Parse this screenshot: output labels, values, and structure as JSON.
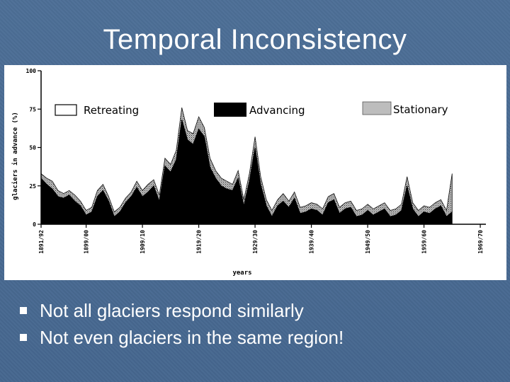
{
  "slide": {
    "title": "Temporal Inconsistency",
    "bullets": [
      "Not all glaciers respond similarly",
      "Not even glaciers in the same region!"
    ]
  },
  "colors": {
    "background": "#4a6c94",
    "advancing": "#000000",
    "stationary": "#bdbdbd",
    "retreating": "#ffffff"
  },
  "chart_data": {
    "type": "area",
    "title": "",
    "xlabel": "years",
    "ylabel": "glaciers in advance (%)",
    "ylim": [
      0,
      100
    ],
    "xlim": [
      1891.5,
      1970.5
    ],
    "yticks": [
      0,
      25,
      50,
      75,
      100
    ],
    "xticks": [
      {
        "label": "1891/92",
        "x": 1891.5
      },
      {
        "label": "1899/00",
        "x": 1899.5
      },
      {
        "label": "1909/10",
        "x": 1909.5
      },
      {
        "label": "1919/20",
        "x": 1919.5
      },
      {
        "label": "1929/30",
        "x": 1929.5
      },
      {
        "label": "1939/40",
        "x": 1939.5
      },
      {
        "label": "1949/50",
        "x": 1949.5
      },
      {
        "label": "1959/60",
        "x": 1959.5
      },
      {
        "label": "1969/70",
        "x": 1969.5
      }
    ],
    "legend": [
      "Retreating",
      "Advancing",
      "Stationary"
    ],
    "legend_position": "top",
    "grid": false,
    "x": [
      1891.5,
      1892.5,
      1893.5,
      1894.5,
      1895.5,
      1896.5,
      1897.5,
      1898.5,
      1899.5,
      1900.5,
      1901.5,
      1902.5,
      1903.5,
      1904.5,
      1905.5,
      1906.5,
      1907.5,
      1908.5,
      1909.5,
      1910.5,
      1911.5,
      1912.5,
      1913.5,
      1914.5,
      1915.5,
      1916.5,
      1917.5,
      1918.5,
      1919.5,
      1920.5,
      1921.5,
      1922.5,
      1923.5,
      1924.5,
      1925.5,
      1926.5,
      1927.5,
      1928.5,
      1929.5,
      1930.5,
      1931.5,
      1932.5,
      1933.5,
      1934.5,
      1935.5,
      1936.5,
      1937.5,
      1938.5,
      1939.5,
      1940.5,
      1941.5,
      1942.5,
      1943.5,
      1944.5,
      1945.5,
      1946.5,
      1947.5,
      1948.5,
      1949.5,
      1950.5,
      1951.5,
      1952.5,
      1953.5,
      1954.5,
      1955.5,
      1956.5,
      1957.5,
      1958.5,
      1959.5,
      1960.5,
      1961.5,
      1962.5,
      1963.5,
      1964.5
    ],
    "series": [
      {
        "name": "Advancing",
        "values": [
          30,
          26,
          23,
          18,
          17,
          19,
          15,
          12,
          6,
          8,
          18,
          22,
          15,
          5,
          8,
          14,
          18,
          24,
          18,
          21,
          25,
          15,
          38,
          34,
          42,
          68,
          55,
          52,
          62,
          57,
          37,
          30,
          25,
          23,
          22,
          30,
          12,
          28,
          50,
          26,
          12,
          5,
          12,
          15,
          11,
          17,
          7,
          8,
          10,
          9,
          6,
          14,
          16,
          7,
          10,
          11,
          5,
          6,
          9,
          6,
          8,
          10,
          5,
          6,
          9,
          25,
          10,
          5,
          8,
          7,
          10,
          12,
          5,
          8
        ]
      },
      {
        "name": "Stationary",
        "values": [
          3,
          4,
          5,
          4,
          3,
          3,
          4,
          3,
          3,
          3,
          4,
          4,
          3,
          3,
          3,
          3,
          3,
          4,
          4,
          5,
          4,
          4,
          5,
          5,
          6,
          8,
          6,
          7,
          8,
          6,
          6,
          5,
          5,
          5,
          4,
          5,
          4,
          5,
          7,
          5,
          4,
          4,
          4,
          5,
          4,
          4,
          4,
          4,
          4,
          4,
          4,
          4,
          4,
          4,
          4,
          4,
          4,
          4,
          4,
          4,
          4,
          4,
          4,
          4,
          4,
          6,
          4,
          4,
          4,
          4,
          4,
          4,
          4,
          25
        ]
      }
    ]
  }
}
